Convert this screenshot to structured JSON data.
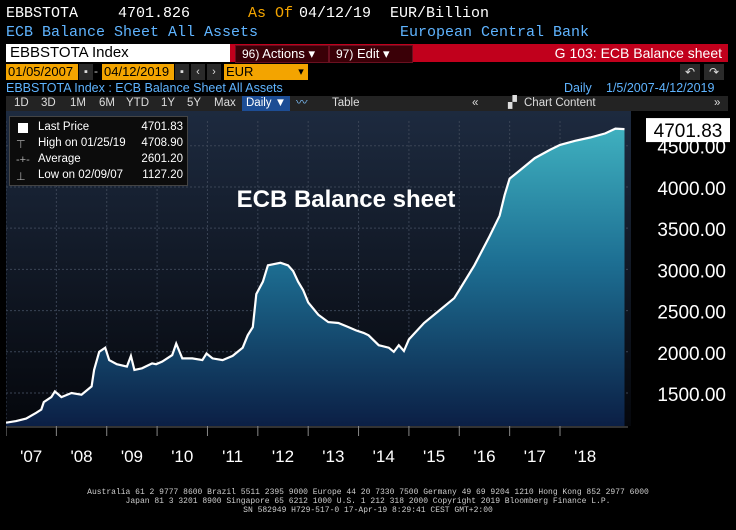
{
  "header": {
    "ticker": "EBBSTOTA",
    "price": "4701.826",
    "as_of_label": "As Of",
    "as_of_date": "04/12/19",
    "units": "EUR/Billion",
    "description": "ECB Balance Sheet All Assets",
    "source": "European Central Bank"
  },
  "redbar": {
    "security": "EBBSTOTA Index",
    "actions_num": "96)",
    "actions_label": "Actions",
    "edit_num": "97)",
    "edit_label": "Edit",
    "graph_title": "G 103: ECB Balance sheet"
  },
  "dates": {
    "start": "01/05/2007",
    "end": "04/12/2019",
    "currency": "EUR"
  },
  "index_line": {
    "label": "EBBSTOTA Index : ECB Balance Sheet All Assets",
    "period": "Daily",
    "range": "1/5/2007-4/12/2019"
  },
  "toolbar": {
    "ranges": [
      "1D",
      "3D",
      "1M",
      "6M",
      "YTD",
      "1Y",
      "5Y",
      "Max"
    ],
    "daily": "Daily",
    "table": "Table",
    "chart_content": "Chart Content"
  },
  "legend": {
    "last_price_label": "Last Price",
    "last_price_value": "4701.83",
    "high_label": "High on 01/25/19",
    "high_value": "4708.90",
    "average_label": "Average",
    "average_value": "2601.20",
    "low_label": "Low on 02/09/07",
    "low_value": "1127.20"
  },
  "footer": {
    "line1": "Australia 61 2 9777 8600 Brazil 5511 2395 9000 Europe 44 20 7330 7500 Germany 49 69 9204 1210 Hong Kong 852 2977 6000",
    "line2": "Japan 81 3 3201 8900        Singapore 65 6212 1000        U.S. 1 212 318 2000                 Copyright 2019 Bloomberg Finance L.P.",
    "line3": "SN 582949 H729-517-0 17-Apr-19  8:29:41 CEST GMT+2:00"
  },
  "colors": {
    "line": "#ffffff",
    "area_top": "#3fb0bf",
    "area_bottom": "#0b1f45",
    "red_bar": "#c1001c",
    "orange_field": "#f3a400",
    "blue_text": "#5fb4ff",
    "last_price_box": "#ffffff"
  },
  "chart_data": {
    "type": "area",
    "title": "ECB Balance sheet",
    "x_tick_labels": [
      "'07",
      "'08",
      "'09",
      "'10",
      "'11",
      "'12",
      "'13",
      "'14",
      "'15",
      "'16",
      "'17",
      "'18"
    ],
    "y_tick_labels": [
      "1500.00",
      "2000.00",
      "2500.00",
      "3000.00",
      "3500.00",
      "4000.00",
      "4500.00"
    ],
    "ylim": [
      1100,
      4800
    ],
    "xlim": [
      2007.0,
      2019.35
    ],
    "last_value_label": "4701.83",
    "grid": true,
    "series": [
      {
        "x": [
          2007.0,
          2007.2,
          2007.4,
          2007.6,
          2007.7,
          2007.75,
          2007.9,
          2007.97,
          2008.1,
          2008.3,
          2008.5,
          2008.7,
          2008.75,
          2008.85,
          2008.97,
          2009.05,
          2009.2,
          2009.4,
          2009.48,
          2009.55,
          2009.7,
          2009.9,
          2009.98,
          2010.1,
          2010.3,
          2010.38,
          2010.5,
          2010.7,
          2010.9,
          2010.98,
          2011.1,
          2011.3,
          2011.5,
          2011.7,
          2011.8,
          2011.9,
          2011.97,
          2012.1,
          2012.2,
          2012.45,
          2012.6,
          2012.7,
          2012.8,
          2012.9,
          2013.0,
          2013.2,
          2013.4,
          2013.6,
          2013.8,
          2013.95,
          2014.1,
          2014.2,
          2014.4,
          2014.6,
          2014.7,
          2014.8,
          2014.9,
          2015.0,
          2015.3,
          2015.6,
          2015.9,
          2016.0,
          2016.3,
          2016.6,
          2016.8,
          2016.9,
          2017.0,
          2017.2,
          2017.5,
          2017.8,
          2018.0,
          2018.3,
          2018.6,
          2018.9,
          2019.1,
          2019.28
        ],
        "y": [
          1140,
          1160,
          1190,
          1260,
          1300,
          1390,
          1450,
          1520,
          1450,
          1500,
          1480,
          1580,
          1780,
          2000,
          2050,
          1900,
          1850,
          1820,
          1950,
          1780,
          1800,
          1860,
          1850,
          1880,
          1960,
          2100,
          1920,
          1920,
          1900,
          1980,
          1920,
          1900,
          1950,
          2050,
          2200,
          2300,
          2700,
          2850,
          3050,
          3080,
          3050,
          2980,
          2850,
          2750,
          2600,
          2450,
          2360,
          2350,
          2300,
          2260,
          2230,
          2200,
          2080,
          2050,
          2000,
          2080,
          2010,
          2150,
          2350,
          2500,
          2650,
          2750,
          3050,
          3400,
          3650,
          3900,
          4100,
          4200,
          4350,
          4450,
          4510,
          4560,
          4600,
          4650,
          4708,
          4702
        ]
      }
    ]
  }
}
